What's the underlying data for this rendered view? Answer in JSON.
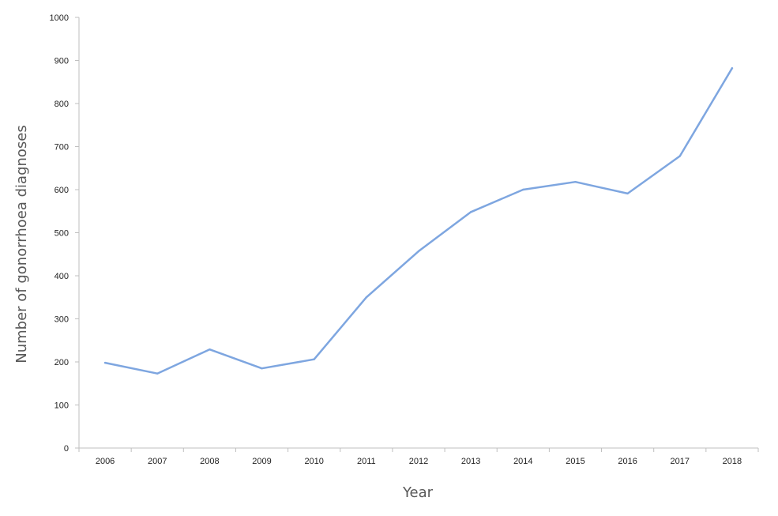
{
  "chart_data": {
    "type": "line",
    "title": "",
    "xlabel": "Year",
    "ylabel": "Number of gonorrhoea diagnoses",
    "categories": [
      "2006",
      "2007",
      "2008",
      "2009",
      "2010",
      "2011",
      "2012",
      "2013",
      "2014",
      "2015",
      "2016",
      "2017",
      "2018"
    ],
    "series": [
      {
        "name": "",
        "values": [
          198,
          173,
          229,
          185,
          206,
          350,
          457,
          548,
          600,
          618,
          591,
          678,
          882
        ]
      }
    ],
    "ylim": [
      0,
      1000
    ],
    "yticks": [
      0,
      100,
      200,
      300,
      400,
      500,
      600,
      700,
      800,
      900,
      1000
    ],
    "grid": false,
    "legend": "none",
    "colors": {
      "line": "#7ea6e0",
      "axis": "#bfbfbf",
      "text": "#222222",
      "axis_title": "#595959"
    }
  }
}
